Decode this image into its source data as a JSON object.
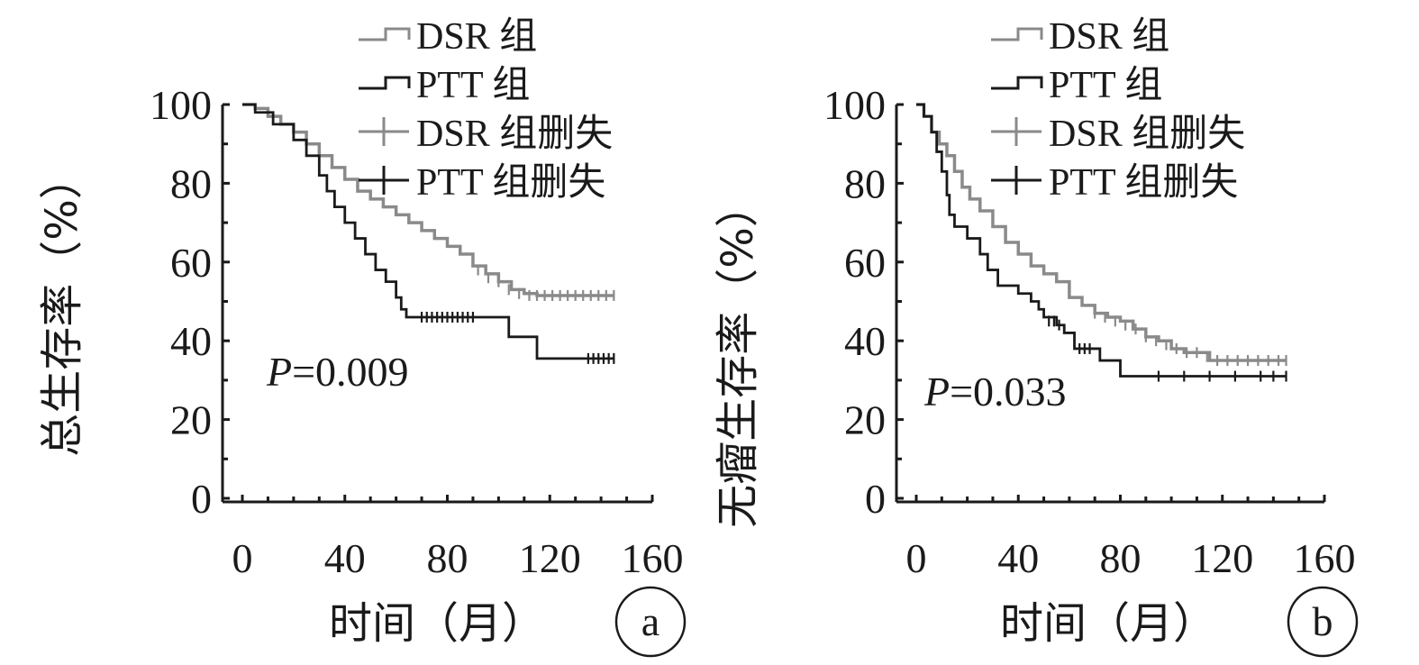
{
  "colors": {
    "dsr": "#8a8a8a",
    "ptt": "#1a1a1a",
    "axis": "#1a1a1a"
  },
  "chart_data": [
    {
      "type": "line",
      "panel_label": "a",
      "ylabel": "总生存率（%）",
      "xlabel": "时间（月）",
      "annotation": "P=0.009",
      "annotation_italic": "P",
      "annotation_rest": "=0.009",
      "xlim": [
        0,
        160
      ],
      "ylim": [
        0,
        100
      ],
      "xticks": [
        "0",
        "40",
        "80",
        "120",
        "160"
      ],
      "yticks": [
        "0",
        "20",
        "40",
        "60",
        "80",
        "100"
      ],
      "legend": [
        "DSR 组",
        "PTT 组",
        "DSR 组删失",
        "PTT 组删失"
      ],
      "series": [
        {
          "name": "DSR 组",
          "step": [
            [
              0,
              100
            ],
            [
              5,
              99
            ],
            [
              10,
              97
            ],
            [
              15,
              95
            ],
            [
              20,
              93
            ],
            [
              25,
              90
            ],
            [
              30,
              87
            ],
            [
              35,
              84
            ],
            [
              40,
              81
            ],
            [
              45,
              78
            ],
            [
              50,
              76
            ],
            [
              55,
              74
            ],
            [
              60,
              72
            ],
            [
              65,
              70
            ],
            [
              70,
              68
            ],
            [
              75,
              66
            ],
            [
              80,
              64
            ],
            [
              85,
              62
            ],
            [
              90,
              59
            ],
            [
              95,
              57
            ],
            [
              100,
              55
            ],
            [
              105,
              53
            ],
            [
              110,
              52
            ],
            [
              115,
              51.5
            ],
            [
              145,
              51.5
            ]
          ],
          "censored": [
            [
              92,
              58
            ],
            [
              96,
              56
            ],
            [
              100,
              55
            ],
            [
              104,
              53
            ],
            [
              108,
              52
            ],
            [
              112,
              51.5
            ],
            [
              115,
              51.5
            ],
            [
              118,
              51.5
            ],
            [
              121,
              51.5
            ],
            [
              124,
              51.5
            ],
            [
              127,
              51.5
            ],
            [
              130,
              51.5
            ],
            [
              133,
              51.5
            ],
            [
              136,
              51.5
            ],
            [
              139,
              51.5
            ],
            [
              142,
              51.5
            ],
            [
              145,
              51.5
            ]
          ]
        },
        {
          "name": "PTT 组",
          "step": [
            [
              0,
              100
            ],
            [
              5,
              98
            ],
            [
              12,
              95
            ],
            [
              20,
              91
            ],
            [
              25,
              87
            ],
            [
              30,
              82
            ],
            [
              33,
              78
            ],
            [
              36,
              74
            ],
            [
              40,
              70
            ],
            [
              44,
              66
            ],
            [
              48,
              62
            ],
            [
              52,
              58
            ],
            [
              56,
              55
            ],
            [
              60,
              51
            ],
            [
              62,
              48
            ],
            [
              64,
              46
            ],
            [
              104,
              46
            ],
            [
              104,
              41
            ],
            [
              115,
              41
            ],
            [
              115,
              35.5
            ],
            [
              145,
              35.5
            ]
          ],
          "censored": [
            [
              70,
              46
            ],
            [
              72,
              46
            ],
            [
              74,
              46
            ],
            [
              76,
              46
            ],
            [
              78,
              46
            ],
            [
              80,
              46
            ],
            [
              82,
              46
            ],
            [
              84,
              46
            ],
            [
              86,
              46
            ],
            [
              88,
              46
            ],
            [
              90,
              46
            ],
            [
              135,
              35.5
            ],
            [
              137,
              35.5
            ],
            [
              139,
              35.5
            ],
            [
              141,
              35.5
            ],
            [
              143,
              35.5
            ],
            [
              145,
              35.5
            ]
          ]
        }
      ]
    },
    {
      "type": "line",
      "panel_label": "b",
      "ylabel": "无瘤生存率（%）",
      "xlabel": "时间（月）",
      "annotation": "P=0.033",
      "annotation_italic": "P",
      "annotation_rest": "=0.033",
      "xlim": [
        0,
        160
      ],
      "ylim": [
        0,
        100
      ],
      "xticks": [
        "0",
        "40",
        "80",
        "120",
        "160"
      ],
      "yticks": [
        "0",
        "20",
        "40",
        "60",
        "80",
        "100"
      ],
      "legend": [
        "DSR 组",
        "PTT 组",
        "DSR 组删失",
        "PTT 组删失"
      ],
      "series": [
        {
          "name": "DSR 组",
          "step": [
            [
              0,
              100
            ],
            [
              3,
              97
            ],
            [
              6,
              93
            ],
            [
              9,
              90
            ],
            [
              12,
              87
            ],
            [
              15,
              83
            ],
            [
              18,
              79
            ],
            [
              21,
              76
            ],
            [
              25,
              73
            ],
            [
              30,
              69
            ],
            [
              35,
              65
            ],
            [
              40,
              62
            ],
            [
              45,
              59
            ],
            [
              50,
              57
            ],
            [
              55,
              55
            ],
            [
              60,
              51
            ],
            [
              65,
              49
            ],
            [
              70,
              47
            ],
            [
              75,
              46
            ],
            [
              80,
              45
            ],
            [
              85,
              43
            ],
            [
              90,
              41
            ],
            [
              95,
              40
            ],
            [
              100,
              38
            ],
            [
              105,
              37
            ],
            [
              110,
              37
            ],
            [
              115,
              35
            ],
            [
              145,
              35
            ]
          ],
          "censored": [
            [
              70,
              47
            ],
            [
              74,
              46
            ],
            [
              78,
              45
            ],
            [
              82,
              44
            ],
            [
              86,
              43
            ],
            [
              90,
              41
            ],
            [
              94,
              40
            ],
            [
              98,
              39
            ],
            [
              102,
              38
            ],
            [
              106,
              37
            ],
            [
              110,
              37
            ],
            [
              114,
              36
            ],
            [
              118,
              35
            ],
            [
              122,
              35
            ],
            [
              126,
              35
            ],
            [
              130,
              35
            ],
            [
              134,
              35
            ],
            [
              138,
              35
            ],
            [
              142,
              35
            ],
            [
              145,
              35
            ]
          ]
        },
        {
          "name": "PTT 组",
          "step": [
            [
              0,
              100
            ],
            [
              3,
              97
            ],
            [
              6,
              93
            ],
            [
              8,
              88
            ],
            [
              10,
              83
            ],
            [
              12,
              77
            ],
            [
              13,
              72
            ],
            [
              15,
              69
            ],
            [
              20,
              66
            ],
            [
              25,
              62
            ],
            [
              28,
              58
            ],
            [
              32,
              54
            ],
            [
              40,
              52
            ],
            [
              45,
              50
            ],
            [
              48,
              48
            ],
            [
              50,
              46
            ],
            [
              55,
              44
            ],
            [
              58,
              42
            ],
            [
              62,
              38
            ],
            [
              72,
              38
            ],
            [
              72,
              35
            ],
            [
              80,
              35
            ],
            [
              80,
              31
            ],
            [
              145,
              31
            ]
          ],
          "censored": [
            [
              52,
              45
            ],
            [
              54,
              45
            ],
            [
              56,
              44
            ],
            [
              64,
              38
            ],
            [
              66,
              38
            ],
            [
              68,
              38
            ],
            [
              95,
              31
            ],
            [
              105,
              31
            ],
            [
              115,
              31
            ],
            [
              125,
              31
            ],
            [
              135,
              31
            ],
            [
              140,
              31
            ],
            [
              145,
              31
            ]
          ]
        }
      ]
    }
  ]
}
